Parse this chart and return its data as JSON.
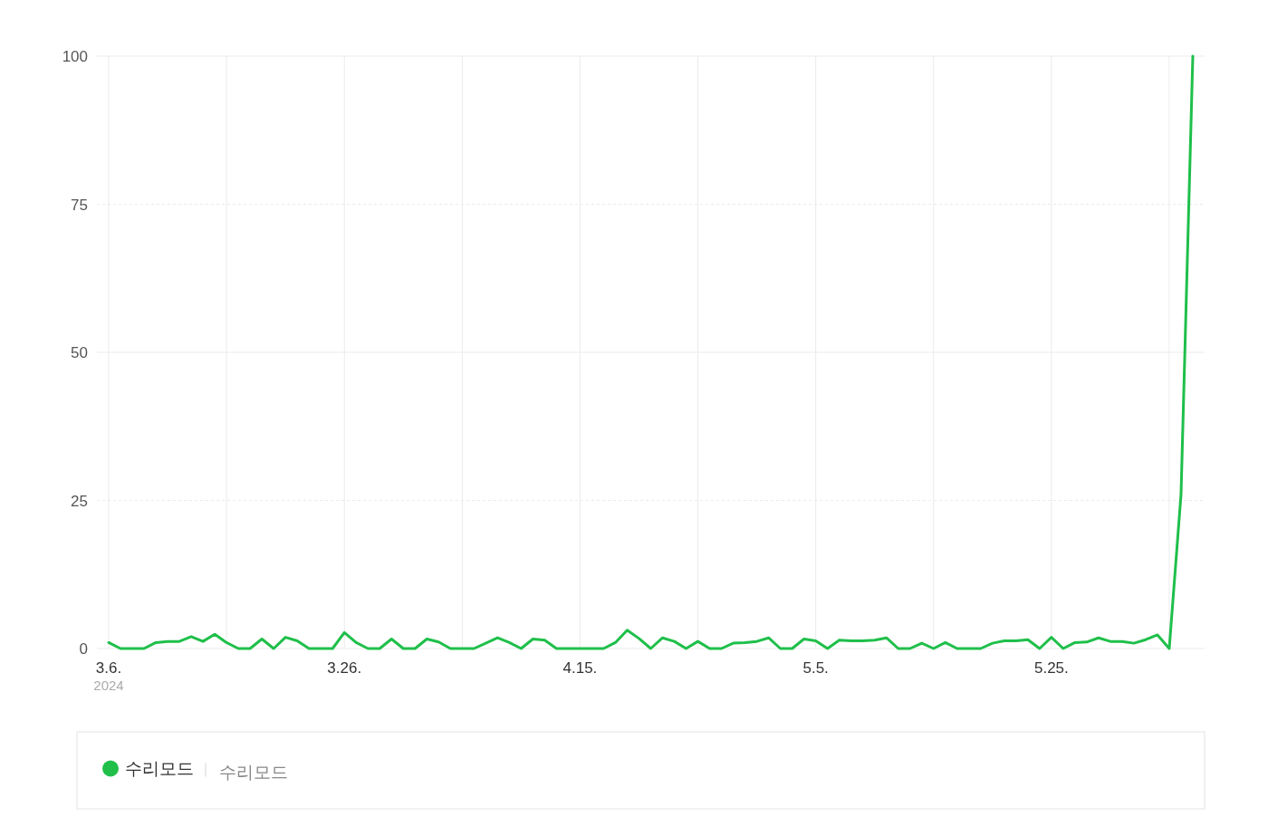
{
  "chart_data": {
    "type": "line",
    "x": [
      "2024-03-06",
      "2024-03-07",
      "2024-03-08",
      "2024-03-09",
      "2024-03-10",
      "2024-03-11",
      "2024-03-12",
      "2024-03-13",
      "2024-03-14",
      "2024-03-15",
      "2024-03-16",
      "2024-03-17",
      "2024-03-18",
      "2024-03-19",
      "2024-03-20",
      "2024-03-21",
      "2024-03-22",
      "2024-03-23",
      "2024-03-24",
      "2024-03-25",
      "2024-03-26",
      "2024-03-27",
      "2024-03-28",
      "2024-03-29",
      "2024-03-30",
      "2024-03-31",
      "2024-04-01",
      "2024-04-02",
      "2024-04-03",
      "2024-04-04",
      "2024-04-05",
      "2024-04-06",
      "2024-04-07",
      "2024-04-08",
      "2024-04-09",
      "2024-04-10",
      "2024-04-11",
      "2024-04-12",
      "2024-04-13",
      "2024-04-14",
      "2024-04-15",
      "2024-04-16",
      "2024-04-17",
      "2024-04-18",
      "2024-04-19",
      "2024-04-20",
      "2024-04-21",
      "2024-04-22",
      "2024-04-23",
      "2024-04-24",
      "2024-04-25",
      "2024-04-26",
      "2024-04-27",
      "2024-04-28",
      "2024-04-29",
      "2024-04-30",
      "2024-05-01",
      "2024-05-02",
      "2024-05-03",
      "2024-05-04",
      "2024-05-05",
      "2024-05-06",
      "2024-05-07",
      "2024-05-08",
      "2024-05-09",
      "2024-05-10",
      "2024-05-11",
      "2024-05-12",
      "2024-05-13",
      "2024-05-14",
      "2024-05-15",
      "2024-05-16",
      "2024-05-17",
      "2024-05-18",
      "2024-05-19",
      "2024-05-20",
      "2024-05-21",
      "2024-05-22",
      "2024-05-23",
      "2024-05-24",
      "2024-05-25",
      "2024-05-26",
      "2024-05-27",
      "2024-05-28",
      "2024-05-29",
      "2024-05-30",
      "2024-05-31",
      "2024-06-01",
      "2024-06-02",
      "2024-06-03",
      "2024-06-04",
      "2024-06-05",
      "2024-06-06"
    ],
    "series": [
      {
        "name": "수리모드",
        "color": "#1fbf4a",
        "values": [
          1.0,
          0,
          0,
          0,
          1.0,
          1.2,
          1.2,
          2.0,
          1.2,
          2.4,
          1.0,
          0,
          0,
          1.6,
          0,
          1.9,
          1.3,
          0,
          0,
          0,
          2.7,
          1.0,
          0,
          0,
          1.6,
          0,
          0,
          1.6,
          1.1,
          0,
          0,
          0,
          0.9,
          1.8,
          1.0,
          0,
          1.6,
          1.4,
          0,
          0,
          0,
          0,
          0,
          1.0,
          3.1,
          1.7,
          0,
          1.8,
          1.2,
          0,
          1.2,
          0,
          0,
          0.9,
          1.0,
          1.2,
          1.8,
          0,
          0,
          1.6,
          1.3,
          0,
          1.4,
          1.3,
          1.3,
          1.4,
          1.8,
          0,
          0,
          0.9,
          0,
          1.0,
          0,
          0,
          0,
          0.9,
          1.3,
          1.3,
          1.5,
          0,
          1.9,
          0,
          1.0,
          1.1,
          1.8,
          1.2,
          1.2,
          0.9,
          1.5,
          2.3,
          0,
          26,
          100
        ]
      }
    ],
    "xlim": [
      "2024-03-05",
      "2024-06-07"
    ],
    "xticks": [
      {
        "value": "2024-03-06",
        "label": "3.6.\n2024"
      },
      {
        "value": "2024-03-16",
        "label": null
      },
      {
        "value": "2024-03-26",
        "label": "3.26."
      },
      {
        "value": "2024-04-05",
        "label": null
      },
      {
        "value": "2024-04-15",
        "label": "4.15."
      },
      {
        "value": "2024-04-25",
        "label": null
      },
      {
        "value": "2024-05-05",
        "label": "5.5."
      },
      {
        "value": "2024-05-15",
        "label": null
      },
      {
        "value": "2024-05-25",
        "label": "5.25."
      },
      {
        "value": "2024-06-04",
        "label": null
      }
    ],
    "ylim": [
      0,
      100
    ],
    "yticks": [
      0,
      25,
      50,
      75,
      100
    ],
    "grid": true,
    "legend": "bottom",
    "line_style": "solid",
    "annotations": [
      "수리모드"
    ]
  }
}
